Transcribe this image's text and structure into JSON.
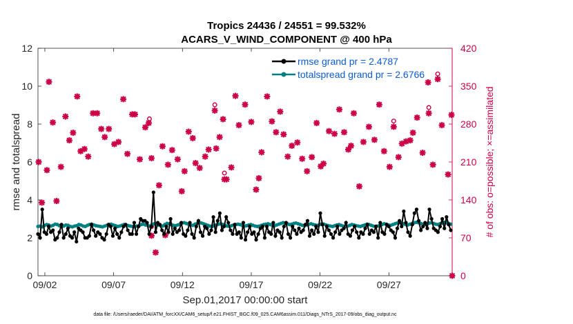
{
  "chart_data": {
    "type": "line",
    "title_line1": "Tropics 24436 / 24551 = 99.532%",
    "title_line2": "ACARS_V_WIND_COMPONENT @ 400 hPa",
    "xlabel": "Sep.01,2017 00:00:00 start",
    "ylabel": "rmse and totalspread",
    "y2label": "# of obs: o=possible; ×=assimilated",
    "footer": "data file: /Users/raeder/DAI/ATM_forcXX/CAM6_setup/f.e21.FHIST_BGC.f09_025.CAM6assim.011/Diags_NTrS_2017-09/obs_diag_output.nc",
    "xlim": [
      1.5,
      31.6
    ],
    "ylim": [
      0,
      12
    ],
    "y2lim": [
      0,
      420
    ],
    "x_ticks": [
      {
        "v": 2,
        "label": "09/02"
      },
      {
        "v": 7,
        "label": "09/07"
      },
      {
        "v": 12,
        "label": "09/12"
      },
      {
        "v": 17,
        "label": "09/17"
      },
      {
        "v": 22,
        "label": "09/22"
      },
      {
        "v": 27,
        "label": "09/27"
      }
    ],
    "y_ticks": [
      0,
      2,
      4,
      6,
      8,
      10,
      12
    ],
    "y2_ticks": [
      0,
      70,
      140,
      210,
      280,
      350,
      420
    ],
    "colors": {
      "rmse": "#000000",
      "spread": "#008080",
      "obs": "#cc0044",
      "legend_text": "#0b5bd3"
    },
    "series": [
      {
        "name": "rmse grand pr = 2.4787",
        "values": [
          2.2,
          2.0,
          3.5,
          2.3,
          2.2,
          2.6,
          2.3,
          2.4,
          1.9,
          2.0,
          2.3,
          2.7,
          2.0,
          2.2,
          2.5,
          2.1,
          2.0,
          2.3,
          1.8,
          2.5,
          2.4,
          2.3,
          2.0,
          2.0,
          2.1,
          2.7,
          2.4,
          2.1,
          2.3,
          2.2,
          2.0,
          1.9,
          2.2,
          2.7,
          2.6,
          2.1,
          2.5,
          2.2,
          2.0,
          2.3,
          2.6,
          2.7,
          2.4,
          2.2,
          2.2,
          2.8,
          2.2,
          2.6,
          3.0,
          2.9,
          2.9,
          2.8,
          2.2,
          2.6,
          4.4,
          2.3,
          2.8,
          2.7,
          2.4,
          2.2,
          2.6,
          2.3,
          3.0,
          2.2,
          2.5,
          2.3,
          2.4,
          2.8,
          2.2,
          2.1,
          2.4,
          2.8,
          2.2,
          2.0,
          2.6,
          2.9,
          2.3,
          2.1,
          2.6,
          2.5,
          2.2,
          2.4,
          3.1,
          2.3,
          2.9,
          3.3,
          2.4,
          2.6,
          3.1,
          2.8,
          2.4,
          2.2,
          2.7,
          2.2,
          2.3,
          2.0,
          2.8,
          1.9,
          2.3,
          2.6,
          2.2,
          2.3,
          1.9,
          2.2,
          2.5,
          2.6,
          2.0,
          2.6,
          2.3,
          2.2,
          2.8,
          2.1,
          2.4,
          2.3,
          2.0,
          2.6,
          2.8,
          2.2,
          2.0,
          2.6,
          2.4,
          2.2,
          2.5,
          2.3,
          2.4,
          2.7,
          2.9,
          2.1,
          2.4,
          2.2,
          2.6,
          2.3,
          3.3,
          2.7,
          2.1,
          2.6,
          2.4,
          2.2,
          2.0,
          2.3,
          2.6,
          2.2,
          2.4,
          2.5,
          2.8,
          2.2,
          2.1,
          2.4,
          2.6,
          2.3,
          2.0,
          2.3,
          2.2,
          2.5,
          2.7,
          2.2,
          2.4,
          2.3,
          2.6,
          2.0,
          2.8,
          2.3,
          2.2,
          2.7,
          2.6,
          2.4,
          2.3,
          2.0,
          2.5,
          2.9,
          2.6,
          3.4,
          2.8,
          2.3,
          2.1,
          2.7,
          3.3,
          3.5,
          2.9,
          2.4,
          2.6,
          2.8,
          2.5,
          3.5,
          3.0,
          2.5,
          2.4,
          2.3,
          2.6,
          3.0,
          2.5,
          3.1,
          2.7,
          2.4
        ]
      },
      {
        "name": "totalspread grand pr = 2.6766",
        "values": [
          2.6,
          2.62,
          2.58,
          2.65,
          2.7,
          2.68,
          2.62,
          2.66,
          2.72,
          2.7,
          2.64,
          2.6,
          2.62,
          2.68,
          2.66,
          2.6,
          2.58,
          2.62,
          2.64,
          2.7,
          2.68,
          2.62,
          2.6,
          2.66,
          2.7,
          2.72,
          2.68,
          2.64,
          2.62,
          2.6,
          2.58,
          2.62,
          2.66,
          2.7,
          2.72,
          2.68,
          2.64,
          2.6,
          2.62,
          2.66,
          2.7,
          2.68,
          2.64,
          2.62,
          2.6,
          2.58,
          2.62,
          2.64,
          2.7,
          2.72,
          2.68,
          2.66,
          2.62,
          2.7,
          2.74,
          2.72,
          2.68,
          2.64,
          2.62,
          2.7,
          2.76,
          2.74,
          2.7,
          2.66,
          2.64,
          2.68,
          2.72,
          2.78,
          2.8,
          2.76,
          2.72,
          2.68,
          2.66,
          2.72,
          2.76,
          2.8,
          2.78,
          2.74,
          2.7,
          2.66,
          2.62,
          2.6,
          2.64,
          2.68,
          2.72,
          2.74,
          2.7,
          2.66,
          2.62,
          2.6,
          2.64,
          2.68,
          2.7,
          2.72,
          2.7,
          2.66,
          2.62,
          2.64,
          2.68,
          2.7,
          2.66,
          2.62,
          2.6,
          2.62,
          2.66,
          2.7,
          2.72,
          2.74,
          2.7,
          2.66,
          2.64,
          2.68,
          2.72,
          2.76,
          2.8,
          2.78,
          2.74,
          2.7,
          2.72,
          2.76,
          2.78,
          2.74,
          2.7,
          2.66,
          2.64,
          2.68,
          2.72,
          2.74,
          2.7,
          2.68,
          2.66,
          2.7,
          2.74,
          2.72,
          2.68,
          2.64,
          2.62,
          2.6,
          2.64,
          2.68,
          2.7,
          2.66,
          2.62,
          2.6,
          2.62,
          2.66,
          2.7,
          2.68,
          2.64,
          2.62,
          2.6,
          2.64,
          2.68,
          2.72,
          2.7,
          2.66,
          2.62,
          2.6,
          2.62,
          2.66,
          2.7,
          2.74,
          2.72,
          2.68,
          2.66,
          2.7,
          2.74,
          2.78,
          2.8,
          2.78,
          2.74,
          2.7,
          2.68,
          2.72,
          2.76,
          2.8,
          2.82,
          2.8,
          2.76,
          2.72,
          2.7,
          2.74,
          2.78,
          2.8,
          2.76,
          2.72,
          2.7,
          2.74,
          2.78,
          2.82,
          2.8,
          2.76,
          2.72
        ]
      }
    ],
    "obs_counts": [
      [
        1.55,
        210
      ],
      [
        1.78,
        135
      ],
      [
        2.15,
        195
      ],
      [
        2.3,
        358
      ],
      [
        2.58,
        283
      ],
      [
        2.85,
        138
      ],
      [
        3.17,
        201
      ],
      [
        3.5,
        294
      ],
      [
        3.78,
        250
      ],
      [
        4.05,
        264
      ],
      [
        4.35,
        331
      ],
      [
        4.6,
        230
      ],
      [
        4.88,
        234
      ],
      [
        5.15,
        220
      ],
      [
        5.5,
        300
      ],
      [
        5.8,
        300
      ],
      [
        6.1,
        271
      ],
      [
        6.35,
        256
      ],
      [
        6.65,
        271
      ],
      [
        7.05,
        243
      ],
      [
        7.35,
        247
      ],
      [
        7.7,
        326
      ],
      [
        8.0,
        225
      ],
      [
        8.35,
        298
      ],
      [
        8.55,
        298
      ],
      [
        8.9,
        215
      ],
      [
        9.3,
        274
      ],
      [
        9.55,
        282
      ],
      [
        9.75,
        217
      ],
      [
        9.75,
        74
      ],
      [
        10.05,
        43
      ],
      [
        10.3,
        167
      ],
      [
        10.55,
        239
      ],
      [
        10.75,
        75
      ],
      [
        10.95,
        205
      ],
      [
        11.25,
        232
      ],
      [
        11.65,
        215
      ],
      [
        11.95,
        156
      ],
      [
        12.15,
        193
      ],
      [
        12.45,
        266
      ],
      [
        12.75,
        254
      ],
      [
        12.95,
        208
      ],
      [
        13.25,
        199
      ],
      [
        13.65,
        220
      ],
      [
        13.9,
        233
      ],
      [
        14.35,
        305
      ],
      [
        14.45,
        235
      ],
      [
        14.7,
        256
      ],
      [
        14.95,
        289
      ],
      [
        15.05,
        178
      ],
      [
        15.2,
        178
      ],
      [
        15.55,
        200
      ],
      [
        15.85,
        332
      ],
      [
        16.1,
        278
      ],
      [
        16.55,
        316
      ],
      [
        17.0,
        284
      ],
      [
        17.35,
        159
      ],
      [
        17.55,
        180
      ],
      [
        17.75,
        228
      ],
      [
        18.15,
        331
      ],
      [
        18.5,
        285
      ],
      [
        18.8,
        265
      ],
      [
        19.1,
        303
      ],
      [
        19.35,
        261
      ],
      [
        19.65,
        220
      ],
      [
        19.95,
        240
      ],
      [
        20.35,
        246
      ],
      [
        20.7,
        216
      ],
      [
        21.05,
        193
      ],
      [
        21.4,
        219
      ],
      [
        21.75,
        282
      ],
      [
        22.05,
        202
      ],
      [
        22.25,
        207
      ],
      [
        22.65,
        267
      ],
      [
        23.05,
        262
      ],
      [
        23.4,
        307
      ],
      [
        23.75,
        265
      ],
      [
        24.05,
        233
      ],
      [
        24.25,
        240
      ],
      [
        24.45,
        300
      ],
      [
        24.85,
        165
      ],
      [
        25.15,
        247
      ],
      [
        25.55,
        275
      ],
      [
        25.95,
        251
      ],
      [
        26.3,
        316
      ],
      [
        26.65,
        230
      ],
      [
        27.05,
        201
      ],
      [
        27.35,
        275
      ],
      [
        27.7,
        219
      ],
      [
        27.95,
        244
      ],
      [
        28.25,
        248
      ],
      [
        28.55,
        250
      ],
      [
        28.75,
        264
      ],
      [
        29.05,
        292
      ],
      [
        29.45,
        227
      ],
      [
        29.85,
        357
      ],
      [
        29.9,
        300
      ],
      [
        30.2,
        205
      ],
      [
        30.55,
        363
      ],
      [
        30.85,
        278
      ],
      [
        31.3,
        187
      ],
      [
        31.55,
        297
      ],
      [
        31.6,
        0
      ]
    ],
    "obs_possible_extra": [
      [
        9.6,
        282
      ],
      [
        14.35,
        308
      ],
      [
        15.05,
        182
      ],
      [
        27.35,
        278
      ],
      [
        29.9,
        303
      ],
      [
        30.55,
        365
      ],
      [
        9.75,
        83
      ]
    ]
  }
}
